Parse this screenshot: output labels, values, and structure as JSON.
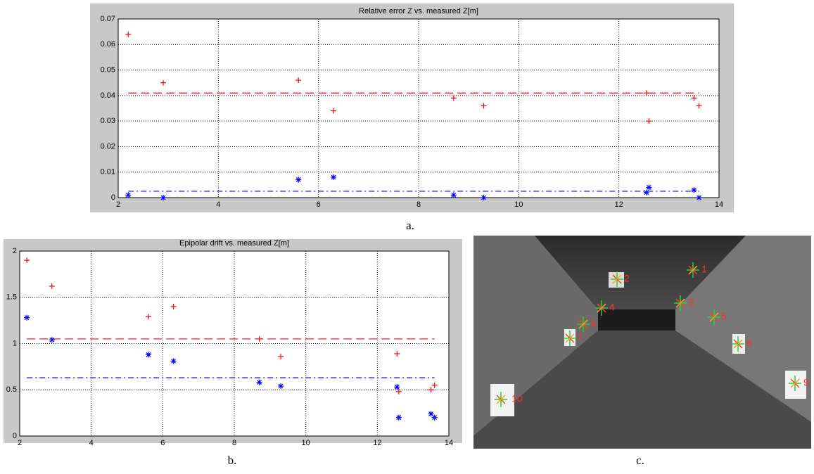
{
  "chart_data": [
    {
      "type": "scatter",
      "title": "Relative error Z vs. measured Z[m]",
      "caption": "a.",
      "x": [
        2.2,
        2.9,
        5.6,
        6.3,
        8.7,
        9.3,
        12.55,
        12.6,
        13.5,
        13.6
      ],
      "series": [
        {
          "color": "#ff0000",
          "marker": "+",
          "values": [
            0.064,
            0.045,
            0.046,
            0.034,
            0.039,
            0.036,
            0.041,
            0.03,
            0.039,
            0.036
          ]
        },
        {
          "color": "#0000ff",
          "marker": "*",
          "values": [
            0.001,
            0,
            0.007,
            0.008,
            0.001,
            0,
            0.002,
            0.004,
            0.003,
            0
          ]
        }
      ],
      "lines": [
        {
          "color": "#ff0000",
          "style": "dashed",
          "x": [
            2.2,
            13.6
          ],
          "values": [
            0.041,
            0.041
          ]
        },
        {
          "color": "#0000ff",
          "style": "dashdot",
          "x": [
            2.2,
            13.6
          ],
          "values": [
            0.0025,
            0.0025
          ]
        }
      ],
      "xlim": [
        2,
        14
      ],
      "xticks": [
        2,
        4,
        6,
        8,
        10,
        12,
        14
      ],
      "ylim": [
        0,
        0.07
      ],
      "yticks": [
        0,
        0.01,
        0.02,
        0.03,
        0.04,
        0.05,
        0.06,
        0.07
      ],
      "grid": true
    },
    {
      "type": "scatter",
      "title": "Epipolar drift vs. measured Z[m]",
      "caption": "b.",
      "x": [
        2.2,
        2.9,
        5.6,
        6.3,
        8.7,
        9.3,
        12.55,
        12.6,
        13.5,
        13.6
      ],
      "series": [
        {
          "color": "#ff0000",
          "marker": "+",
          "values": [
            1.9,
            1.62,
            1.29,
            1.4,
            1.05,
            0.86,
            0.89,
            0.48,
            0.5,
            0.55
          ]
        },
        {
          "color": "#0000ff",
          "marker": "*",
          "values": [
            1.28,
            1.04,
            0.88,
            0.81,
            0.58,
            0.54,
            0.53,
            0.2,
            0.24,
            0.2
          ]
        }
      ],
      "lines": [
        {
          "color": "#ff0000",
          "style": "dashed",
          "x": [
            2.2,
            13.6
          ],
          "values": [
            1.05,
            1.05
          ]
        },
        {
          "color": "#0000ff",
          "style": "dashdot",
          "x": [
            2.2,
            13.6
          ],
          "values": [
            0.63,
            0.63
          ]
        }
      ],
      "xlim": [
        2,
        14
      ],
      "xticks": [
        2,
        4,
        6,
        8,
        10,
        12,
        14
      ],
      "ylim": [
        0,
        2
      ],
      "yticks": [
        0,
        0.5,
        1,
        1.5,
        2
      ],
      "grid": true
    }
  ],
  "photo": {
    "caption": "c.",
    "labels": [
      "1",
      "2",
      "3",
      "4",
      "5",
      "6",
      "7",
      "8",
      "9",
      "10"
    ]
  }
}
